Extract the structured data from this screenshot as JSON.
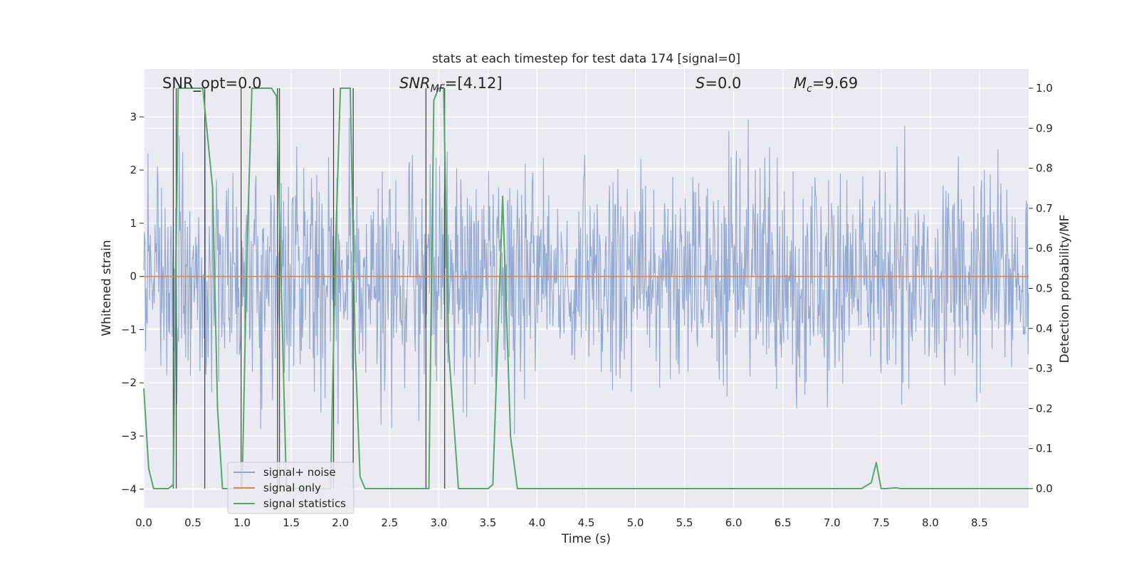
{
  "chart_data": {
    "type": "line",
    "title": "stats at each timestep for test data 174 [signal=0]",
    "xlabel": "Time (s)",
    "ylabel": "Whitened strain",
    "ylabel_right": "Detection probability/MF",
    "xlim": [
      0.0,
      9.0
    ],
    "ylim": [
      -4.35,
      3.9
    ],
    "ylim_right": [
      -0.048,
      1.048
    ],
    "xticks": [
      "0.0",
      "0.5",
      "1.0",
      "1.5",
      "2.0",
      "2.5",
      "3.0",
      "3.5",
      "4.0",
      "4.5",
      "5.0",
      "5.5",
      "6.0",
      "6.5",
      "7.0",
      "7.5",
      "8.0",
      "8.5"
    ],
    "yticks": [
      "3",
      "2",
      "1",
      "0",
      "−1",
      "−2",
      "−3",
      "−4"
    ],
    "yticks_right": [
      "1.0",
      "0.9",
      "0.8",
      "0.7",
      "0.6",
      "0.5",
      "0.4",
      "0.3",
      "0.2",
      "0.1",
      "0.0"
    ],
    "annotations": {
      "snr_opt": "SNR_opt=0.0",
      "snr_mf_base": "SNR",
      "snr_mf_sub": "MF",
      "snr_mf_value": "=[4.12]",
      "s_label": "S",
      "s_value": "=0.0",
      "mc_base": "M",
      "mc_sub": "c",
      "mc_value": "=9.69"
    },
    "legend": {
      "position": "lower-left",
      "entries": [
        "signal+ noise",
        "signal only",
        "signal statistics"
      ]
    },
    "colors": {
      "noise": "#8fa5cf",
      "signal_only": "#dd8452",
      "statistics": "#55a868",
      "markers": "#4a4a4a",
      "background": "#eaeaf2",
      "grid": "#ffffff"
    },
    "series": [
      {
        "name": "signal+ noise",
        "axis": "left",
        "description": "whitened strain, noise only (approx. |x|<3.6)",
        "envelope": [
          -1.8,
          2.0
        ]
      },
      {
        "name": "signal only",
        "axis": "left",
        "x": [
          0.0,
          9.0
        ],
        "values": [
          0.0,
          0.0
        ]
      },
      {
        "name": "signal statistics",
        "axis": "right",
        "x": [
          0.0,
          0.05,
          0.1,
          0.25,
          0.3,
          0.35,
          0.5,
          0.6,
          0.7,
          0.75,
          0.8,
          0.9,
          1.0,
          1.05,
          1.1,
          1.3,
          1.35,
          1.45,
          1.5,
          1.9,
          1.95,
          2.0,
          2.05,
          2.1,
          2.15,
          2.2,
          2.25,
          2.5,
          2.9,
          2.95,
          3.0,
          3.05,
          3.1,
          3.2,
          3.25,
          3.5,
          3.55,
          3.65,
          3.73,
          3.8,
          4.5,
          5.0,
          6.0,
          7.0,
          7.3,
          7.4,
          7.45,
          7.5,
          7.55,
          7.65,
          7.7,
          8.0,
          9.0
        ],
        "values": [
          0.25,
          0.05,
          0.0,
          0.0,
          0.01,
          1.0,
          1.0,
          1.0,
          0.75,
          0.2,
          0.0,
          0.0,
          0.0,
          0.6,
          1.0,
          1.0,
          0.98,
          0.0,
          0.0,
          0.0,
          0.6,
          1.0,
          1.0,
          1.0,
          0.35,
          0.03,
          0.0,
          0.0,
          0.0,
          0.97,
          1.0,
          1.0,
          0.35,
          0.0,
          0.0,
          0.0,
          0.01,
          0.73,
          0.13,
          0.0,
          0.0,
          0.0,
          0.0,
          0.0,
          0.0,
          0.015,
          0.065,
          0.0,
          0.0,
          0.002,
          0.0,
          0.0,
          0.0
        ]
      }
    ],
    "vertical_markers": [
      0.3,
      0.33,
      0.62,
      0.99,
      1.36,
      1.38,
      1.93,
      2.13,
      2.87,
      3.06
    ]
  }
}
